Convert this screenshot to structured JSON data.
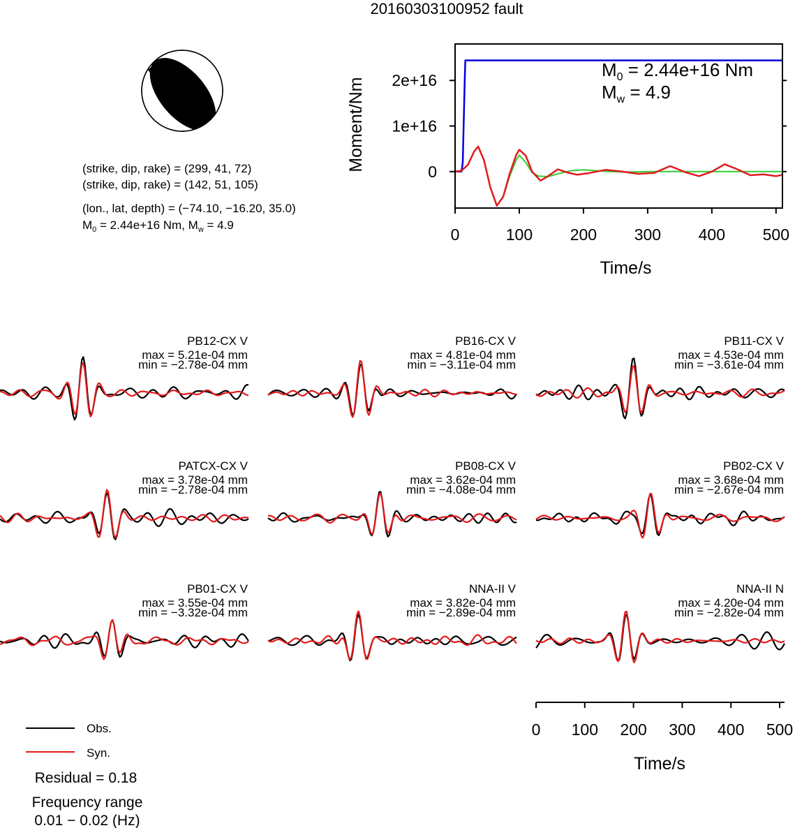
{
  "title": "20160303100952 fault",
  "mechanism": {
    "line1": "(strike, dip, rake) = (299, 41, 72)",
    "line2": "(strike, dip, rake) = (142, 51, 105)",
    "location": "(lon., lat, depth) = (−74.10, −16.20, 35.0)",
    "m0_prefix": "M",
    "m0_sub": "0",
    "m0_value": " = 2.44e+16 Nm, M",
    "mw_sub": "w",
    "mw_value": " = 4.9"
  },
  "colors": {
    "obs": "#000000",
    "syn": "#e31a1c",
    "moment": "#0000dd",
    "stf_green": "#33cc33"
  },
  "chart_data": [
    {
      "type": "line",
      "title": "",
      "xlabel": "Time/s",
      "ylabel": "Moment/Nm",
      "xlim": [
        0,
        510
      ],
      "ylim": [
        -8000000000000000,
        28000000000000000
      ],
      "xticks": [
        0,
        100,
        200,
        300,
        400,
        500
      ],
      "xtick_labels": [
        "0",
        "100",
        "200",
        "300",
        "400",
        "500"
      ],
      "yticks": [
        0,
        10000000000000000,
        20000000000000000
      ],
      "ytick_labels": [
        "0",
        "1e+16",
        "2e+16"
      ],
      "annotation": {
        "m0": "= 2.44e+16 Nm",
        "mw": "= 4.9",
        "m_letter": "M",
        "m0_sub": "0",
        "mw_sub": "w"
      },
      "series": [
        {
          "style": "moment",
          "x": [
            0,
            10,
            12,
            15,
            16,
            510
          ],
          "y": [
            0,
            0,
            2000000000000000,
            20000000000000000,
            24400000000000000,
            24400000000000000
          ]
        },
        {
          "style": "stf_green",
          "x": [
            0,
            10,
            20,
            30,
            36,
            45,
            55,
            65,
            75,
            85,
            95,
            100,
            110,
            120,
            130,
            145,
            160,
            180,
            200,
            220,
            240,
            270,
            300,
            350,
            400,
            450,
            510
          ],
          "y": [
            0,
            100000000000000,
            1500000000000000,
            4500000000000000,
            5500000000000000,
            2500000000000000,
            -3500000000000000,
            -7500000000000000,
            -5500000000000000,
            -1000000000000000,
            2500000000000000,
            3600000000000000,
            2000000000000000,
            -200000000000000,
            -1000000000000000,
            -1100000000000000,
            -500000000000000,
            200000000000000,
            400000000000000,
            200000000000000,
            0,
            -100000000000000,
            0,
            0,
            0,
            0,
            0
          ]
        },
        {
          "style": "stf_red",
          "x": [
            0,
            10,
            20,
            30,
            36,
            45,
            55,
            65,
            75,
            85,
            95,
            100,
            110,
            120,
            133,
            145,
            160,
            175,
            190,
            210,
            235,
            260,
            285,
            310,
            335,
            360,
            380,
            400,
            420,
            440,
            460,
            480,
            500,
            510
          ],
          "y": [
            0,
            200000000000000,
            1500000000000000,
            4500000000000000,
            5500000000000000,
            2500000000000000,
            -3500000000000000,
            -7500000000000000,
            -5500000000000000,
            -500000000000000,
            3600000000000000,
            4800000000000000,
            3500000000000000,
            0,
            -2000000000000000,
            -1000000000000000,
            500000000000000,
            -200000000000000,
            -700000000000000,
            -300000000000000,
            400000000000000,
            0,
            -500000000000000,
            -300000000000000,
            1200000000000000,
            -200000000000000,
            -1000000000000000,
            0,
            1600000000000000,
            500000000000000,
            -800000000000000,
            -600000000000000,
            -1000000000000000,
            -700000000000000
          ]
        }
      ]
    },
    {
      "type": "line",
      "title": "",
      "xlabel": "Time/s",
      "xlim": [
        0,
        510
      ],
      "xticks": [
        0,
        100,
        200,
        300,
        400,
        500
      ],
      "xtick_labels": [
        "0",
        "100",
        "200",
        "300",
        "400",
        "500"
      ],
      "ylim": [
        -1,
        1
      ],
      "stations": [
        {
          "name": "PB12-CX V",
          "max": "max = 5.21e-04 mm",
          "min": "min = −2.78e-04 mm",
          "main_t": 170,
          "amp_max": 5.21,
          "amp_min": 2.78,
          "seed": 1
        },
        {
          "name": "PB16-CX V",
          "max": "max = 4.81e-04 mm",
          "min": "min = −3.11e-04 mm",
          "main_t": 190,
          "amp_max": 4.81,
          "amp_min": 3.11,
          "seed": 2
        },
        {
          "name": "PB11-CX V",
          "max": "max = 4.53e-04 mm",
          "min": "min = −3.61e-04 mm",
          "main_t": 200,
          "amp_max": 4.53,
          "amp_min": 3.61,
          "seed": 3
        },
        {
          "name": "PATCX-CX V",
          "max": "max = 3.78e-04 mm",
          "min": "min = −2.78e-04 mm",
          "main_t": 220,
          "amp_max": 3.78,
          "amp_min": 2.78,
          "seed": 4
        },
        {
          "name": "PB08-CX V",
          "max": "max = 3.62e-04 mm",
          "min": "min = −4.08e-04 mm",
          "main_t": 230,
          "amp_max": 3.62,
          "amp_min": 4.08,
          "seed": 5
        },
        {
          "name": "PB02-CX V",
          "max": "max = 3.68e-04 mm",
          "min": "min = −2.67e-04 mm",
          "main_t": 235,
          "amp_max": 3.68,
          "amp_min": 2.67,
          "seed": 6
        },
        {
          "name": "PB01-CX V",
          "max": "max = 3.55e-04 mm",
          "min": "min = −3.32e-04 mm",
          "main_t": 230,
          "amp_max": 3.55,
          "amp_min": 3.32,
          "seed": 7
        },
        {
          "name": "NNA-II V",
          "max": "max = 3.82e-04 mm",
          "min": "min = −2.89e-04 mm",
          "main_t": 185,
          "amp_max": 3.82,
          "amp_min": 2.89,
          "seed": 8
        },
        {
          "name": "NNA-II N",
          "max": "max = 4.20e-04 mm",
          "min": "min = −2.82e-04 mm",
          "main_t": 185,
          "amp_max": 4.2,
          "amp_min": 2.82,
          "seed": 9
        }
      ],
      "legend": [
        {
          "label": "Obs.",
          "style": "obs"
        },
        {
          "label": "Syn.",
          "style": "syn"
        }
      ]
    }
  ],
  "footer": {
    "residual": "Residual = 0.18",
    "freq_label": "Frequency range",
    "freq_value": "0.01 − 0.02 (Hz)"
  }
}
